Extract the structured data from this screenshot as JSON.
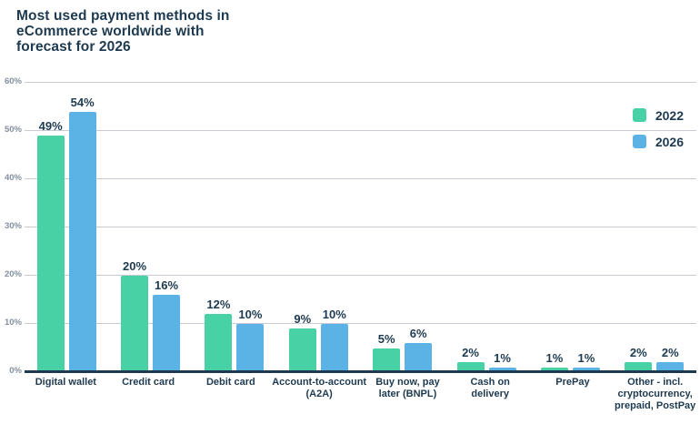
{
  "title": {
    "lines": [
      "Most used payment methods in",
      "eCommerce worldwide with",
      "forecast for 2026"
    ]
  },
  "legend": [
    {
      "label": "2022",
      "color": "#47D1A4"
    },
    {
      "label": "2026",
      "color": "#5BB3E5"
    }
  ],
  "colors": {
    "ink": "#1D3A50",
    "grid": "#C7CCD4",
    "tick_label": "#84909E",
    "series_2022": "#47D1A4",
    "series_2026": "#5BB3E5"
  },
  "chart_data": {
    "type": "bar",
    "title": "Most used payment methods in eCommerce worldwide with forecast for 2026",
    "categories": [
      "Digital wallet",
      "Credit card",
      "Debit card",
      "Account-to-account (A2A)",
      "Buy now, pay later (BNPL)",
      "Cash on delivery",
      "PrePay",
      "Other - incl. cryptocurrency, prepaid, PostPay"
    ],
    "category_label_lines": [
      [
        "Digital wallet"
      ],
      [
        "Credit card"
      ],
      [
        "Debit card"
      ],
      [
        "Account-to-account",
        "(A2A)"
      ],
      [
        "Buy now, pay",
        "later (BNPL)"
      ],
      [
        "Cash on",
        "delivery"
      ],
      [
        "PrePay"
      ],
      [
        "Other - incl.",
        "cryptocurrency,",
        "prepaid, PostPay"
      ]
    ],
    "series": [
      {
        "name": "2022",
        "values": [
          49,
          20,
          12,
          9,
          5,
          2,
          1,
          2
        ]
      },
      {
        "name": "2026",
        "values": [
          54,
          16,
          10,
          10,
          6,
          1,
          1,
          2
        ]
      }
    ],
    "unit": "%",
    "ylim": [
      0,
      60
    ],
    "yticks": [
      0,
      10,
      20,
      30,
      40,
      50,
      60
    ],
    "grid": true,
    "legend_position": "top-right",
    "xlabel": "",
    "ylabel": ""
  }
}
